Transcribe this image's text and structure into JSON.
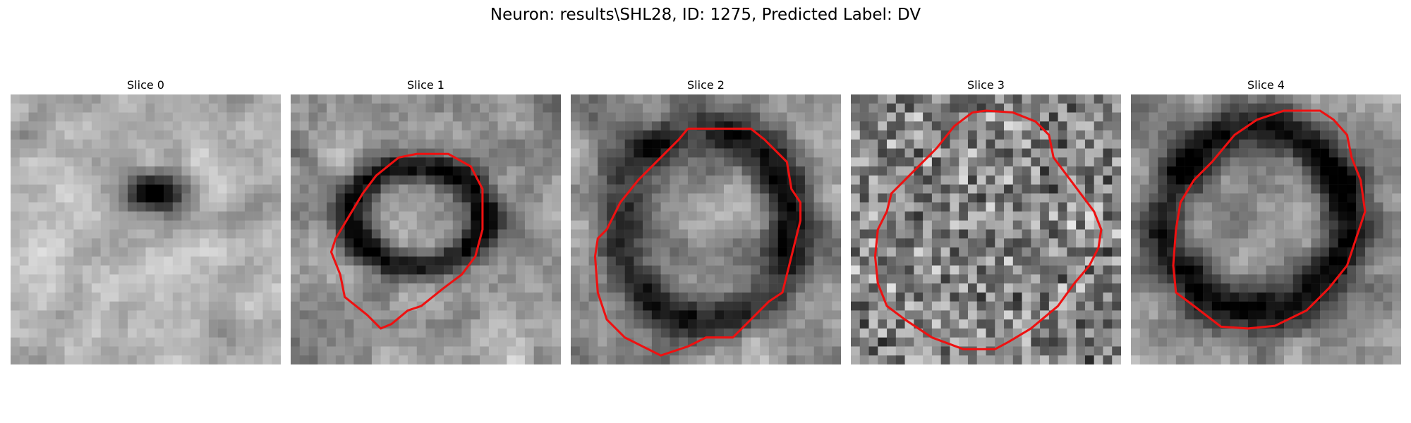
{
  "figure": {
    "title": "Neuron: results\\SHL28, ID: 1275, Predicted Label: DV"
  },
  "panels": [
    {
      "title": "Slice 0",
      "has_contour": false
    },
    {
      "title": "Slice 1",
      "has_contour": true
    },
    {
      "title": "Slice 2",
      "has_contour": true
    },
    {
      "title": "Slice 3",
      "has_contour": true
    },
    {
      "title": "Slice 4",
      "has_contour": true
    }
  ],
  "colors": {
    "contour": "#ee1111",
    "background": "#ffffff"
  }
}
